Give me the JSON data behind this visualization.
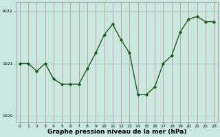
{
  "x": [
    0,
    1,
    2,
    3,
    4,
    5,
    6,
    7,
    8,
    9,
    10,
    11,
    12,
    13,
    14,
    15,
    16,
    17,
    18,
    19,
    20,
    21,
    22,
    23
  ],
  "y": [
    1021.0,
    1021.0,
    1020.85,
    1021.0,
    1020.7,
    1020.6,
    1020.6,
    1020.6,
    1020.9,
    1021.2,
    1021.55,
    1021.75,
    1021.45,
    1021.2,
    1020.4,
    1020.4,
    1020.55,
    1021.0,
    1021.15,
    1021.6,
    1021.85,
    1021.9,
    1021.8,
    1021.8
  ],
  "line_color": "#1a5c1a",
  "marker": "D",
  "marker_size": 1.8,
  "background_color": "#c8e8e0",
  "vgrid_color": "#d08080",
  "hgrid_color": "#a0c0b8",
  "xlabel": "Graphe pression niveau de la mer (hPa)",
  "xlabel_fontsize": 6.5,
  "yticks": [
    1020,
    1021,
    1022
  ],
  "ylim": [
    1019.88,
    1022.18
  ],
  "xlim": [
    -0.5,
    23.5
  ],
  "xticks": [
    0,
    1,
    2,
    3,
    4,
    5,
    6,
    7,
    8,
    9,
    10,
    11,
    12,
    13,
    14,
    15,
    16,
    17,
    18,
    19,
    20,
    21,
    22,
    23
  ],
  "tick_fontsize": 4.5,
  "linewidth": 1.0
}
